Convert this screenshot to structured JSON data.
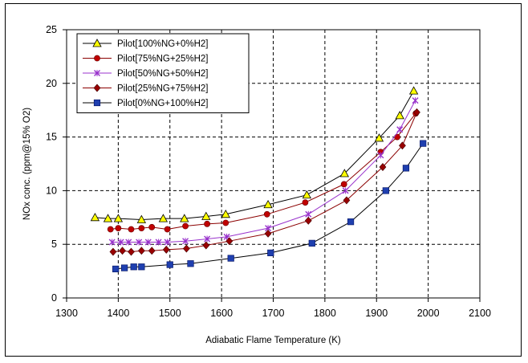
{
  "chart_data": {
    "type": "line",
    "title": "",
    "xlabel": "Adiabatic Flame Temperature (K)",
    "ylabel": "NOx conc. (ppm@15% O2)",
    "xlim": [
      1300,
      2100
    ],
    "ylim": [
      0,
      25
    ],
    "x_ticks": [
      "1300",
      "1400",
      "1500",
      "1600",
      "1700",
      "1800",
      "1900",
      "2000",
      "2100"
    ],
    "y_ticks": [
      "0",
      "5",
      "10",
      "15",
      "20",
      "25"
    ],
    "grid": true,
    "legend_position": "top-left",
    "series": [
      {
        "name": "Pilot[100%NG+0%H2]",
        "color": "#ffff00",
        "marker": "triangle",
        "points": [
          [
            1355,
            7.5
          ],
          [
            1380,
            7.4
          ],
          [
            1400,
            7.4
          ],
          [
            1445,
            7.3
          ],
          [
            1487,
            7.4
          ],
          [
            1528,
            7.4
          ],
          [
            1570,
            7.6
          ],
          [
            1608,
            7.8
          ],
          [
            1690,
            8.7
          ],
          [
            1765,
            9.6
          ],
          [
            1838,
            11.6
          ],
          [
            1905,
            14.9
          ],
          [
            1945,
            17.0
          ],
          [
            1972,
            19.3
          ]
        ]
      },
      {
        "name": "Pilot[75%NG+25%H2]",
        "color": "#c00000",
        "marker": "circle",
        "points": [
          [
            1385,
            6.4
          ],
          [
            1400,
            6.5
          ],
          [
            1425,
            6.4
          ],
          [
            1445,
            6.5
          ],
          [
            1465,
            6.6
          ],
          [
            1495,
            6.4
          ],
          [
            1530,
            6.7
          ],
          [
            1572,
            6.9
          ],
          [
            1608,
            7.0
          ],
          [
            1688,
            7.8
          ],
          [
            1762,
            8.9
          ],
          [
            1837,
            10.6
          ],
          [
            1908,
            13.6
          ],
          [
            1940,
            15.0
          ],
          [
            1976,
            17.2
          ]
        ]
      },
      {
        "name": "Pilot[50%NG+50%H2]",
        "color": "#9933cc",
        "marker": "x",
        "points": [
          [
            1388,
            5.2
          ],
          [
            1405,
            5.2
          ],
          [
            1420,
            5.2
          ],
          [
            1440,
            5.2
          ],
          [
            1458,
            5.2
          ],
          [
            1478,
            5.2
          ],
          [
            1495,
            5.2
          ],
          [
            1530,
            5.3
          ],
          [
            1572,
            5.5
          ],
          [
            1610,
            5.7
          ],
          [
            1690,
            6.5
          ],
          [
            1768,
            7.8
          ],
          [
            1840,
            10.0
          ],
          [
            1908,
            13.3
          ],
          [
            1945,
            15.7
          ],
          [
            1975,
            18.4
          ]
        ]
      },
      {
        "name": "Pilot[25%NG+75%H2]",
        "color": "#990000",
        "marker": "diamond",
        "points": [
          [
            1390,
            4.3
          ],
          [
            1408,
            4.4
          ],
          [
            1425,
            4.3
          ],
          [
            1445,
            4.4
          ],
          [
            1465,
            4.4
          ],
          [
            1493,
            4.5
          ],
          [
            1532,
            4.6
          ],
          [
            1570,
            4.9
          ],
          [
            1615,
            5.3
          ],
          [
            1690,
            6.0
          ],
          [
            1768,
            7.2
          ],
          [
            1842,
            9.1
          ],
          [
            1912,
            12.2
          ],
          [
            1950,
            14.2
          ],
          [
            1978,
            17.3
          ]
        ]
      },
      {
        "name": "Pilot[0%NG+100%H2]",
        "color": "#1f3faf",
        "marker": "square",
        "points": [
          [
            1395,
            2.7
          ],
          [
            1412,
            2.8
          ],
          [
            1430,
            2.9
          ],
          [
            1445,
            2.9
          ],
          [
            1500,
            3.1
          ],
          [
            1540,
            3.2
          ],
          [
            1618,
            3.7
          ],
          [
            1695,
            4.2
          ],
          [
            1775,
            5.1
          ],
          [
            1850,
            7.1
          ],
          [
            1918,
            10.0
          ],
          [
            1957,
            12.1
          ],
          [
            1990,
            14.4
          ]
        ]
      }
    ]
  }
}
